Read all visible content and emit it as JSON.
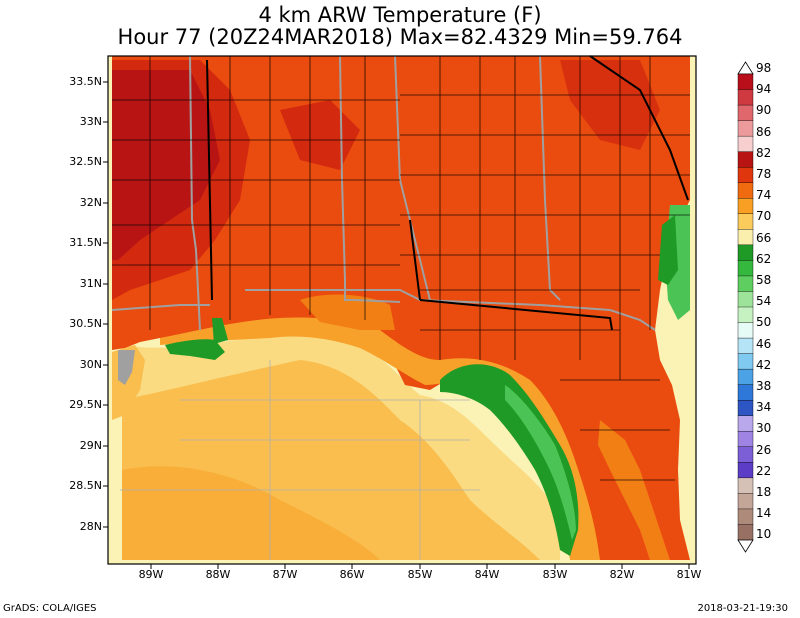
{
  "title": {
    "line1": "4 km ARW Temperature (F)",
    "line2": "Hour 77 (20Z24MAR2018) Max=82.4329 Min=59.764"
  },
  "map": {
    "lat_labels": [
      "33.5N",
      "33N",
      "32.5N",
      "32N",
      "31.5N",
      "31N",
      "30.5N",
      "30N",
      "29.5N",
      "29N",
      "28.5N",
      "28N"
    ],
    "lon_labels": [
      "89W",
      "88W",
      "87W",
      "86W",
      "85W",
      "84W",
      "83W",
      "82W",
      "81W"
    ],
    "field_colors": {
      "land_deep": "#b81414",
      "land_dark": "#d2290f",
      "land_main": "#ea4b0e",
      "land_warm": "#f27f14",
      "coast_orange": "#f7a02a",
      "sea_orange": "#f9be4d",
      "sea_yellow": "#fadb82",
      "sea_pale": "#fbf2b6",
      "green_dark": "#1f9a26",
      "green_light": "#4cc455",
      "border_gray": "#a0a0a0",
      "county_black": "#000000"
    }
  },
  "colorbar": {
    "labels": [
      "98",
      "94",
      "90",
      "86",
      "82",
      "78",
      "74",
      "70",
      "66",
      "62",
      "58",
      "54",
      "50",
      "46",
      "42",
      "38",
      "34",
      "30",
      "26",
      "22",
      "18",
      "14",
      "10"
    ],
    "colors": [
      "#b80f1a",
      "#cf3a40",
      "#e0676b",
      "#ec9a9c",
      "#f7cfcf",
      "#b81414",
      "#e0360e",
      "#f06a10",
      "#f9a024",
      "#fbcb5c",
      "#fbefae",
      "#1f9a26",
      "#35b83e",
      "#5fce60",
      "#9de39a",
      "#c6f2c2",
      "#e6faf6",
      "#b5e4f7",
      "#80c9f0",
      "#4ba3e6",
      "#2d78d8",
      "#2d56c4",
      "#b9a8ec",
      "#9f84e4",
      "#7c5ed6",
      "#5b3dc6",
      "#d6c1b6",
      "#c4a699",
      "#ae8a7b",
      "#987064"
    ]
  },
  "footer": {
    "left": "GrADS: COLA/IGES",
    "right": "2018-03-21-19:30"
  }
}
